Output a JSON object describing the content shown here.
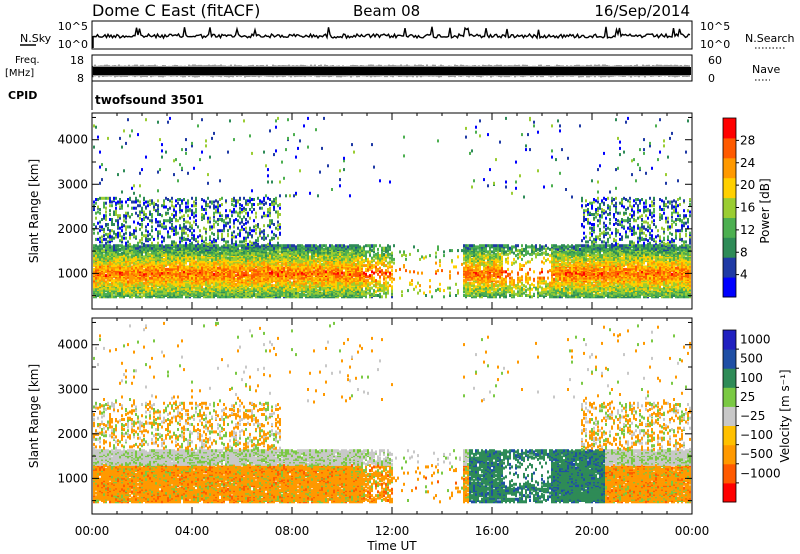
{
  "header": {
    "title": "Dome C East (fitACF)",
    "beam": "Beam 08",
    "date": "16/Sep/2014"
  },
  "nsky_panel": {
    "left_label": "N.Sky",
    "right_label": "N.Search",
    "left_ticks": [
      "10^5",
      "10^0"
    ],
    "right_ticks": [
      "10^5",
      "10^0"
    ]
  },
  "freq_panel": {
    "left_label_line1": "Freq.",
    "left_label_line2": "[MHz]",
    "right_label": "Nave",
    "left_ticks": [
      "18",
      "8"
    ],
    "right_ticks": [
      "60",
      "0"
    ]
  },
  "cpid_panel": {
    "label": "CPID",
    "text": "twofsound 3501"
  },
  "colors": {
    "power": [
      "#0000ff",
      "#1f3aa5",
      "#2e8b57",
      "#4caf50",
      "#9acd32",
      "#ffd000",
      "#ff9900",
      "#ff5a00",
      "#ff0000"
    ],
    "velocity": [
      "#ff0000",
      "#ff5a00",
      "#ff9900",
      "#ffc000",
      "#c8c8c8",
      "#7ac943",
      "#2e8b57",
      "#1f4fa5",
      "#2020c0"
    ]
  },
  "chart_data": [
    {
      "type": "heatmap",
      "name": "power",
      "ylabel": "Slant Range [km]",
      "y_ticks": [
        1000,
        2000,
        3000,
        4000
      ],
      "ylim": [
        200,
        4600
      ],
      "xlim": [
        0,
        24
      ],
      "colorbar_label": "Power [dB]",
      "colorbar_ticks": [
        "4",
        "8",
        "12",
        "16",
        "20",
        "24",
        "28"
      ],
      "colorbar_range": [
        0,
        32
      ]
    },
    {
      "type": "heatmap",
      "name": "velocity",
      "ylabel": "Slant Range [km]",
      "y_ticks": [
        1000,
        2000,
        3000,
        4000
      ],
      "ylim": [
        200,
        4600
      ],
      "xlim": [
        0,
        24
      ],
      "colorbar_label": "Velocity [m s⁻¹]",
      "colorbar_ticks": [
        "1000",
        "500",
        "100",
        "25",
        "−25",
        "−100",
        "−500",
        "−1000"
      ]
    }
  ],
  "x_axis": {
    "label": "Time UT",
    "ticks": [
      "00:00",
      "04:00",
      "08:00",
      "12:00",
      "16:00",
      "20:00",
      "00:00"
    ]
  }
}
